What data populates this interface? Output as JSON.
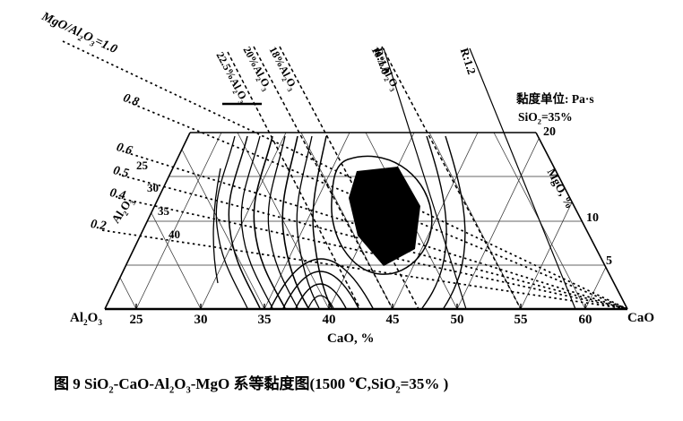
{
  "chart_data": {
    "type": "ternary-contour",
    "title": "图 9 SiO2-CaO-Al2O3-MgO 系等黏度图(1500 ℃, SiO2=35%)",
    "description": "Iso-viscosity (等黏度) diagram of the SiO2-CaO-Al2O3-MgO system at 1500 °C with SiO2 fixed at 35%",
    "viscosity_unit": "Pa·s",
    "temperature_c": 1500,
    "fixed_component": {
      "name": "SiO2",
      "percent": 35
    },
    "axes": {
      "bottom": {
        "label": "CaO, %",
        "ticks": [
          25,
          30,
          35,
          40,
          45,
          50,
          55,
          60
        ],
        "corner_left": "Al2O3",
        "corner_right": "CaO"
      },
      "left": {
        "label": "Al2O3",
        "ticks": [
          25,
          30,
          35,
          40
        ]
      },
      "right": {
        "label": "MgO, %",
        "ticks": [
          20,
          10,
          5
        ]
      }
    },
    "reference_lines": {
      "MgO_Al2O3_ratio": [
        1.0,
        0.8,
        0.6,
        0.5,
        0.4,
        0.2
      ],
      "Al2O3_percent": [
        22.5,
        20,
        18,
        10
      ],
      "R": [
        1.0,
        1.2
      ]
    },
    "features": {
      "iso_viscosity_contours": "dense solid contour curves, crowding toward the Al2O3-rich (left) side",
      "minimum_viscosity_region": "solid black filled region near centre, approx CaO 40-47% / MgO 8-15%",
      "grid": "triangular ternary mesh at 5% intervals"
    }
  },
  "labels": {
    "ratio_title": "MgO/Al_2_O_3_=1.0",
    "ratio_08": "0.8",
    "ratio_06": "0.6",
    "ratio_05": "0.5",
    "ratio_04": "0.4",
    "ratio_02": "0.2",
    "al_225": "22.5%Al_2_O_3_",
    "al_20": "20%Al_2_O_3_",
    "al_18": "18%Al_2_O_3_",
    "al_10": "10%Al_2_O_3_",
    "r_10": "R:1.0",
    "r_12": "R:1.2",
    "legend_unit": "黏度单位: Pa·s",
    "legend_sio2": "SiO_2_=35%",
    "left_axis_title": "Al_2_O_3_",
    "right_axis_title": "MgO, %",
    "bottom_axis_title": "CaO, %",
    "corner_left": "Al_2_O_3_",
    "corner_right": "CaO",
    "left_ticks": [
      "25",
      "30",
      "35",
      "40"
    ],
    "right_ticks": [
      "20",
      "10",
      "5"
    ],
    "bottom_ticks": [
      "25",
      "30",
      "35",
      "40",
      "45",
      "50",
      "55",
      "60"
    ],
    "caption": "图 9  SiO_2_-CaO-Al_2_O_3_-MgO 系等黏度图(1500 ℃,SiO_2_=35% )"
  }
}
